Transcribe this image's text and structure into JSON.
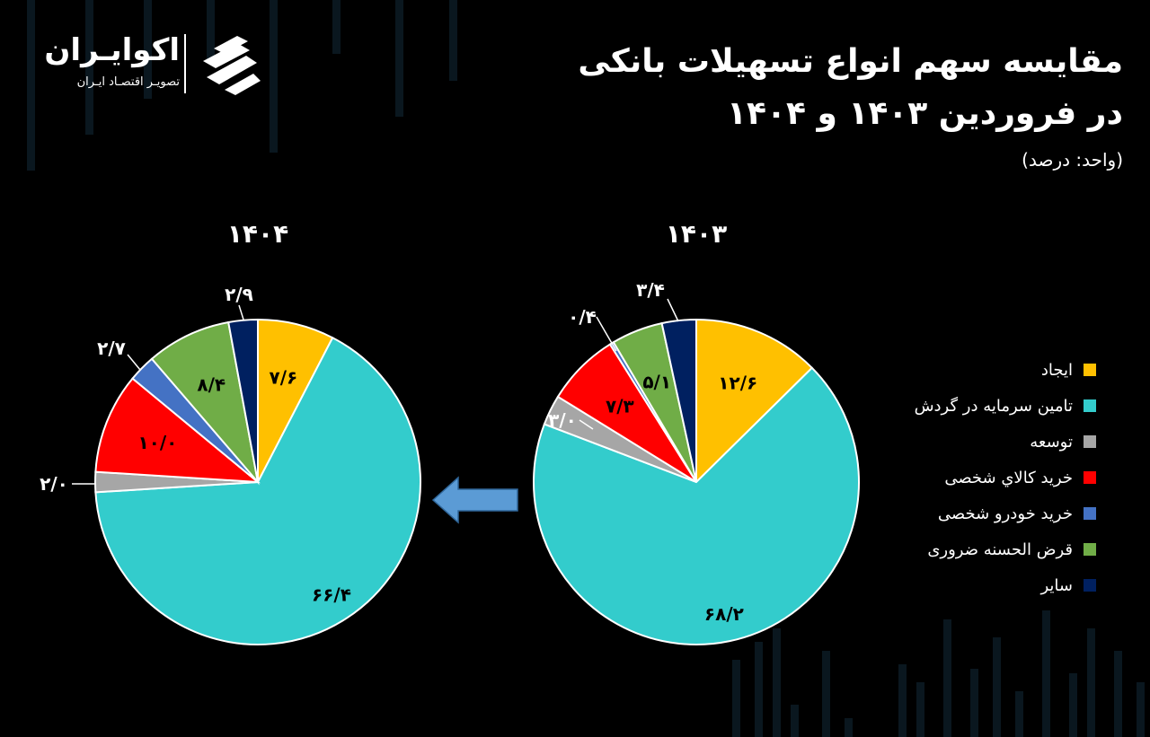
{
  "brand": {
    "name": "اکوایـران",
    "tagline": "تصویـر اقتصـاد ایـران"
  },
  "header": {
    "title_line1": "مقایسه سهم انواع تسهیلات بانکی",
    "title_line2": "در فروردین ۱۴۰۳ و ۱۴۰۴",
    "unit": "(واحد: درصد)"
  },
  "colors": {
    "background": "#000000",
    "ijad": "#FFC000",
    "tamin": "#33CCCC",
    "tose": "#A6A6A6",
    "kala": "#FF0000",
    "khodro": "#4472C4",
    "gharz": "#70AD47",
    "sayer": "#002060",
    "arrow": "#5B9BD5"
  },
  "chart_data": [
    {
      "type": "pie",
      "title": "۱۴۰۳",
      "categories": [
        "ایجاد",
        "تامین سرمایه در گردش",
        "توسعه",
        "خرید کالاي شخصی",
        "خرید خودرو شخصی",
        "قرض الحسنه ضروری",
        "سایر"
      ],
      "values": [
        12.6,
        68.2,
        3.0,
        7.3,
        0.4,
        5.1,
        3.4
      ],
      "value_labels": [
        "۱۲/۶",
        "۶۸/۲",
        "۳/۰",
        "۷/۳",
        "۰/۴",
        "۵/۱",
        "۳/۴"
      ],
      "start_angle_deg": 0,
      "direction": "clockwise"
    },
    {
      "type": "pie",
      "title": "۱۴۰۴",
      "categories": [
        "ایجاد",
        "تامین سرمایه در گردش",
        "توسعه",
        "خرید کالاي شخصی",
        "خرید خودرو شخصی",
        "قرض الحسنه ضروری",
        "سایر"
      ],
      "values": [
        7.6,
        66.4,
        2.0,
        10.0,
        2.7,
        8.4,
        2.9
      ],
      "value_labels": [
        "۷/۶",
        "۶۶/۴",
        "۲/۰",
        "۱۰/۰",
        "۲/۷",
        "۸/۴",
        "۲/۹"
      ],
      "start_angle_deg": 0,
      "direction": "clockwise"
    }
  ],
  "legend": {
    "placement": "right",
    "items": [
      {
        "label": "ایجاد",
        "color": "#FFC000"
      },
      {
        "label": "تامین سرمایه در گردش",
        "color": "#33CCCC"
      },
      {
        "label": "توسعه",
        "color": "#A6A6A6"
      },
      {
        "label": "خرید کالاي شخصی",
        "color": "#FF0000"
      },
      {
        "label": "خرید خودرو شخصی",
        "color": "#4472C4"
      },
      {
        "label": "قرض الحسنه ضروری",
        "color": "#70AD47"
      },
      {
        "label": "سایر",
        "color": "#002060"
      }
    ]
  },
  "icons": {
    "arrow": "arrow-left-icon",
    "logo": "ecoiran-logo-icon"
  }
}
